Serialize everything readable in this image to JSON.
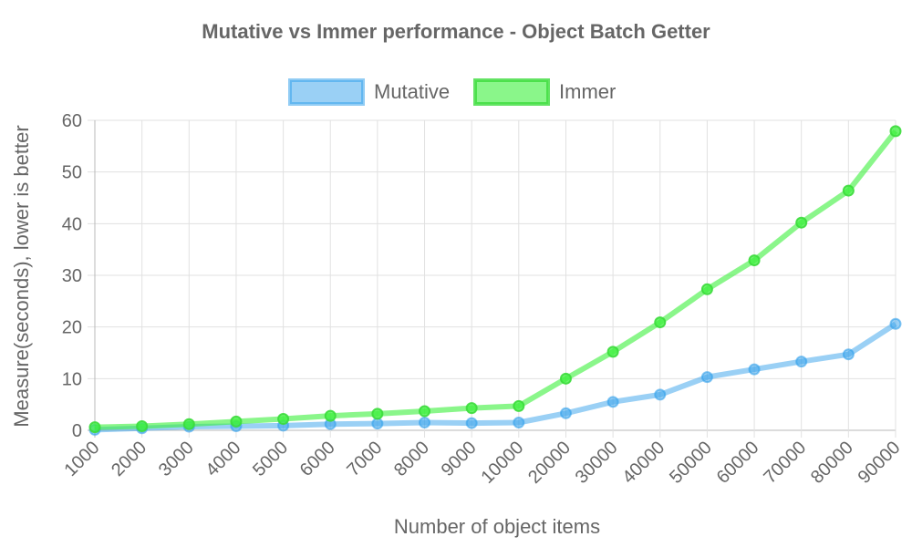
{
  "chart_data": {
    "type": "line",
    "title": "Mutative vs Immer performance - Object Batch Getter",
    "xlabel": "Number of object items",
    "ylabel": "Measure(seconds), lower is better",
    "categories": [
      "1000",
      "2000",
      "3000",
      "4000",
      "5000",
      "6000",
      "7000",
      "8000",
      "9000",
      "10000",
      "20000",
      "30000",
      "40000",
      "50000",
      "60000",
      "70000",
      "80000",
      "90000"
    ],
    "ylim": [
      0,
      60
    ],
    "yticks": [
      0,
      10,
      20,
      30,
      40,
      50,
      60
    ],
    "grid": true,
    "legend_position": "top",
    "series": [
      {
        "name": "Mutative",
        "color": "#36a2eb",
        "values": [
          0.1,
          0.4,
          0.7,
          0.8,
          0.9,
          1.2,
          1.3,
          1.5,
          1.4,
          1.5,
          3.3,
          5.5,
          6.9,
          10.3,
          11.8,
          13.3,
          14.7,
          20.6
        ]
      },
      {
        "name": "Immer",
        "color": "#3cf03c",
        "values": [
          0.6,
          0.8,
          1.2,
          1.7,
          2.2,
          2.8,
          3.2,
          3.7,
          4.3,
          4.7,
          10.0,
          15.2,
          20.9,
          27.3,
          32.9,
          40.2,
          46.4,
          57.9
        ]
      }
    ]
  }
}
